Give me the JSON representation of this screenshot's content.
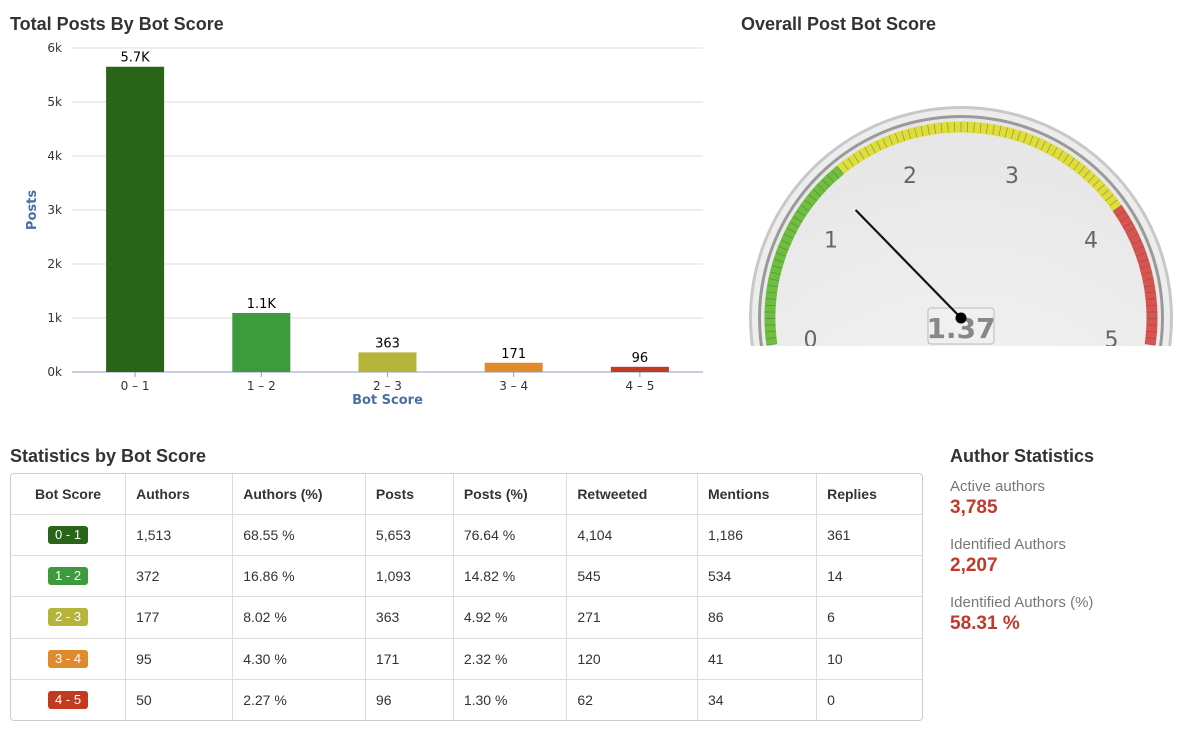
{
  "bar_section": {
    "title": "Total Posts By Bot Score"
  },
  "gauge_section": {
    "title": "Overall Post Bot Score"
  },
  "stats_section": {
    "title": "Statistics by Bot Score"
  },
  "author_section": {
    "title": "Author Statistics",
    "items": [
      {
        "label": "Active authors",
        "value": "3,785"
      },
      {
        "label": "Identified Authors",
        "value": "2,207"
      },
      {
        "label": "Identified Authors (%)",
        "value": "58.31 %"
      }
    ]
  },
  "chart_data": [
    {
      "type": "bar",
      "title": "Total Posts By Bot Score",
      "xlabel": "Bot Score",
      "ylabel": "Posts",
      "categories": [
        "0 – 1",
        "1 – 2",
        "2 – 3",
        "3 – 4",
        "4 – 5"
      ],
      "values": [
        5653,
        1093,
        363,
        171,
        96
      ],
      "data_labels": [
        "5.7K",
        "1.1K",
        "363",
        "171",
        "96"
      ],
      "colors": [
        "#2a6418",
        "#3d9a3d",
        "#b5b53a",
        "#e08a2e",
        "#c23a1f"
      ],
      "ylim": [
        0,
        6000
      ],
      "yticks": [
        0,
        1000,
        2000,
        3000,
        4000,
        5000,
        6000
      ],
      "ytick_labels": [
        "0k",
        "1k",
        "2k",
        "3k",
        "4k",
        "5k",
        "6k"
      ],
      "grid": true,
      "legend": "none"
    },
    {
      "type": "gauge",
      "title": "Overall Post Bot Score",
      "value": 1.37,
      "value_label": "1.37",
      "range": [
        0,
        5
      ],
      "major_ticks": [
        "0",
        "1",
        "2",
        "3",
        "4",
        "5"
      ],
      "bands": [
        {
          "from": 0,
          "to": 1.5,
          "color": "#6fbf3f"
        },
        {
          "from": 1.5,
          "to": 3.9,
          "color": "#dede3a"
        },
        {
          "from": 3.9,
          "to": 5,
          "color": "#d9534f"
        }
      ]
    }
  ],
  "stats_table": {
    "columns": [
      "Bot Score",
      "Authors",
      "Authors (%)",
      "Posts",
      "Posts (%)",
      "Retweeted",
      "Mentions",
      "Replies"
    ],
    "rows": [
      {
        "score": "0 - 1",
        "color": "#2a6418",
        "cells": [
          "1,513",
          "68.55 %",
          "5,653",
          "76.64 %",
          "4,104",
          "1,186",
          "361"
        ]
      },
      {
        "score": "1 - 2",
        "color": "#3d9a3d",
        "cells": [
          "372",
          "16.86 %",
          "1,093",
          "14.82 %",
          "545",
          "534",
          "14"
        ]
      },
      {
        "score": "2 - 3",
        "color": "#b5b53a",
        "cells": [
          "177",
          "8.02 %",
          "363",
          "4.92 %",
          "271",
          "86",
          "6"
        ]
      },
      {
        "score": "3 - 4",
        "color": "#e08a2e",
        "cells": [
          "95",
          "4.30 %",
          "171",
          "2.32 %",
          "120",
          "41",
          "10"
        ]
      },
      {
        "score": "4 - 5",
        "color": "#c23a1f",
        "cells": [
          "50",
          "2.27 %",
          "96",
          "1.30 %",
          "62",
          "34",
          "0"
        ]
      }
    ]
  }
}
